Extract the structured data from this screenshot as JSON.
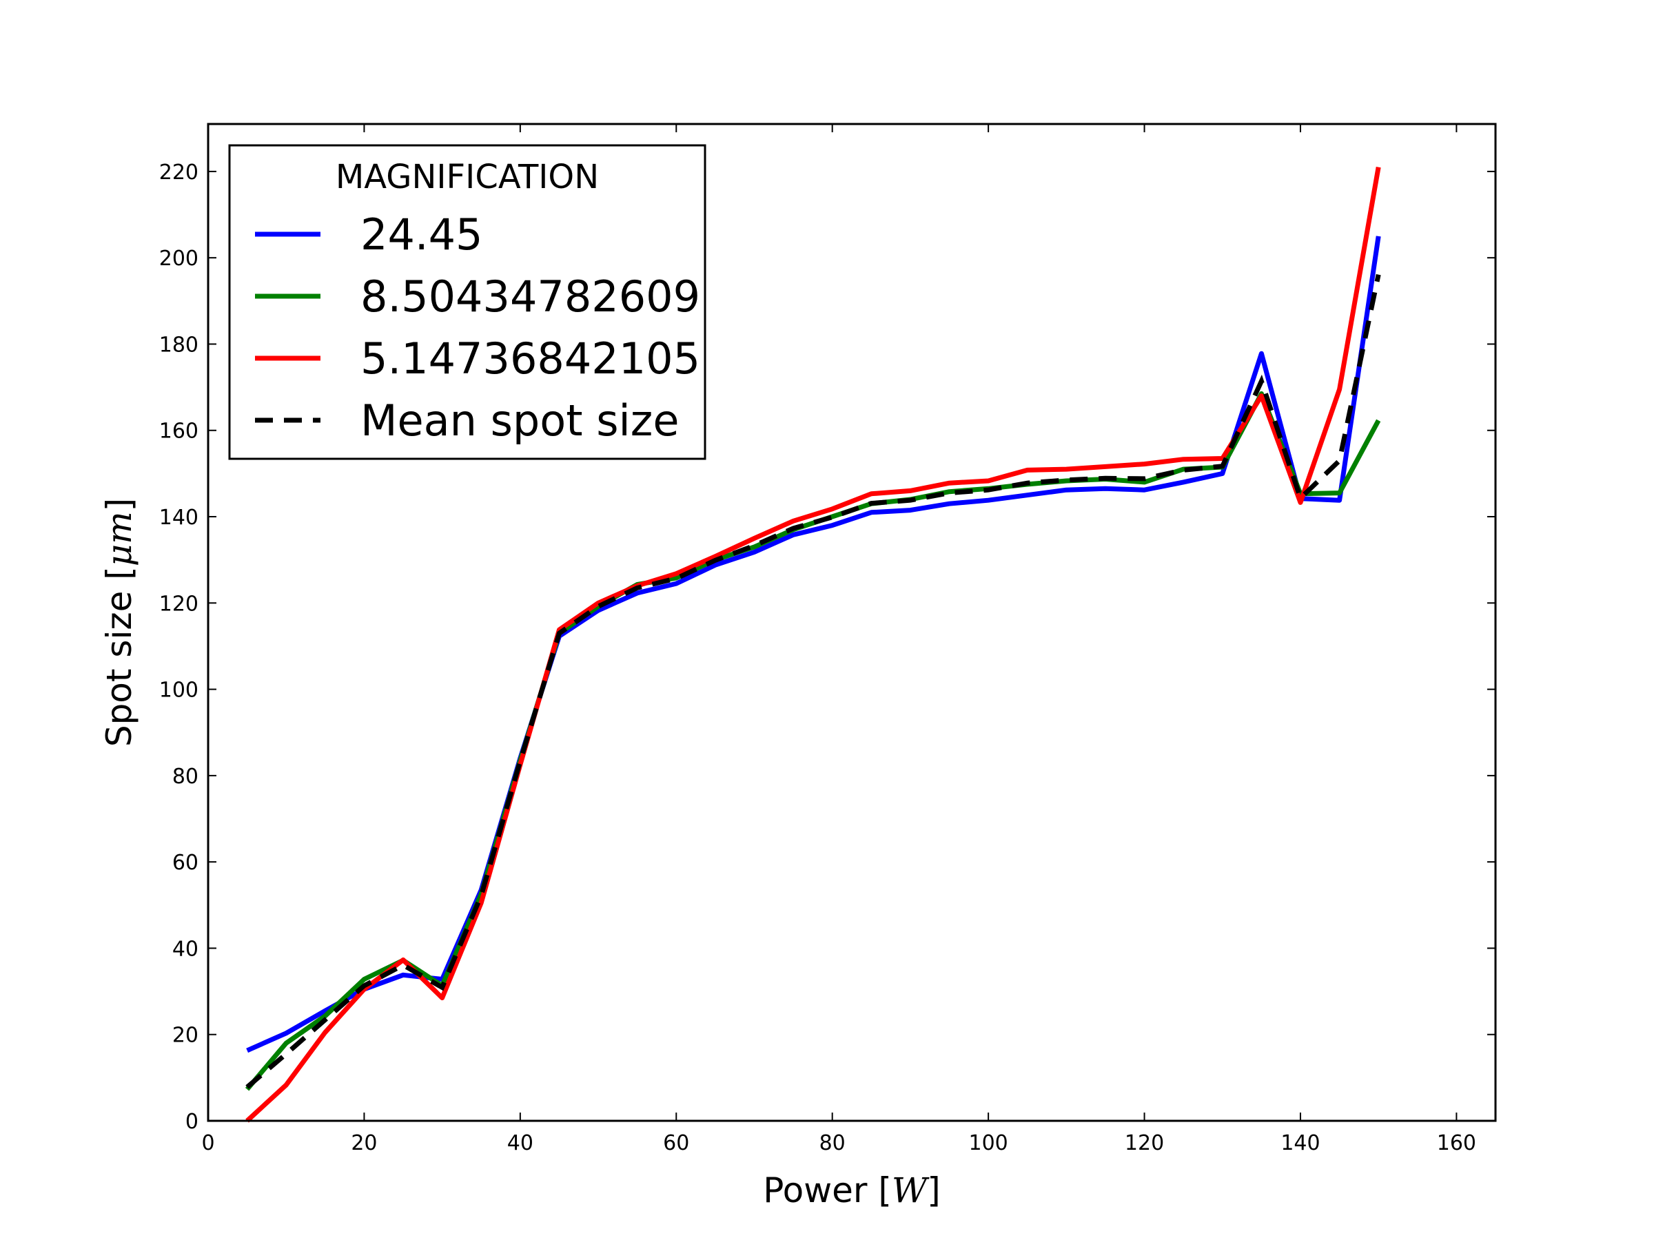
{
  "chart_data": {
    "type": "line",
    "title": "",
    "xlabel": "Power",
    "xlabel_unit": "W",
    "ylabel": "Spot size",
    "ylabel_unit": "μm",
    "xlim": [
      0,
      165
    ],
    "ylim": [
      0,
      231
    ],
    "xticks": [
      0,
      20,
      40,
      60,
      80,
      100,
      120,
      140,
      160
    ],
    "yticks": [
      0,
      20,
      40,
      60,
      80,
      100,
      120,
      140,
      160,
      180,
      200,
      220
    ],
    "grid": false,
    "legend": {
      "title": "MAGNIFICATION",
      "position": "top-left"
    },
    "x": [
      5,
      10,
      15,
      20,
      25,
      30,
      35,
      40,
      45,
      50,
      55,
      60,
      65,
      70,
      75,
      80,
      85,
      90,
      95,
      100,
      105,
      110,
      115,
      120,
      125,
      130,
      135,
      140,
      145,
      150
    ],
    "series": [
      {
        "name": "24.45",
        "color": "#0000ff",
        "style": "solid",
        "values": [
          16.3,
          20.3,
          25.5,
          30.5,
          33.8,
          32.8,
          53.5,
          84,
          112.3,
          118.3,
          122.3,
          124.5,
          128.8,
          131.8,
          135.8,
          138,
          141,
          141.5,
          143,
          143.8,
          145,
          146.2,
          146.5,
          146.2,
          148,
          150,
          177.8,
          144.2,
          143.8,
          205
        ]
      },
      {
        "name": "8.50434782609",
        "color": "#008000",
        "style": "solid",
        "values": [
          7.3,
          18,
          24.3,
          32.8,
          37.2,
          31.3,
          52.5,
          83.5,
          113,
          119.2,
          124.3,
          125.8,
          130,
          133,
          137,
          140,
          143,
          144,
          145.8,
          146.5,
          147.5,
          148.3,
          148.7,
          148,
          151,
          151.5,
          168.5,
          145.3,
          145.5,
          162.3
        ]
      },
      {
        "name": "5.14736842105",
        "color": "#ff0000",
        "style": "solid",
        "values": [
          0,
          8.3,
          20.5,
          30.5,
          37.3,
          28.5,
          50.5,
          82.5,
          113.8,
          120,
          124,
          126.8,
          130.8,
          135,
          139,
          141.8,
          145.3,
          146,
          147.8,
          148.3,
          150.8,
          151,
          151.6,
          152.2,
          153.3,
          153.5,
          168,
          143.3,
          169.5,
          221
        ]
      },
      {
        "name": "Mean spot size",
        "color": "#000000",
        "style": "dashed",
        "values": [
          7.8,
          15.5,
          23.4,
          31.3,
          36.1,
          30.9,
          52.2,
          83.3,
          113,
          119.2,
          123.5,
          125.7,
          129.9,
          133.3,
          137.3,
          139.9,
          143.1,
          143.8,
          145.5,
          146.2,
          147.8,
          148.5,
          148.9,
          148.8,
          150.8,
          151.7,
          171.4,
          144.3,
          153,
          196.1
        ]
      }
    ]
  }
}
